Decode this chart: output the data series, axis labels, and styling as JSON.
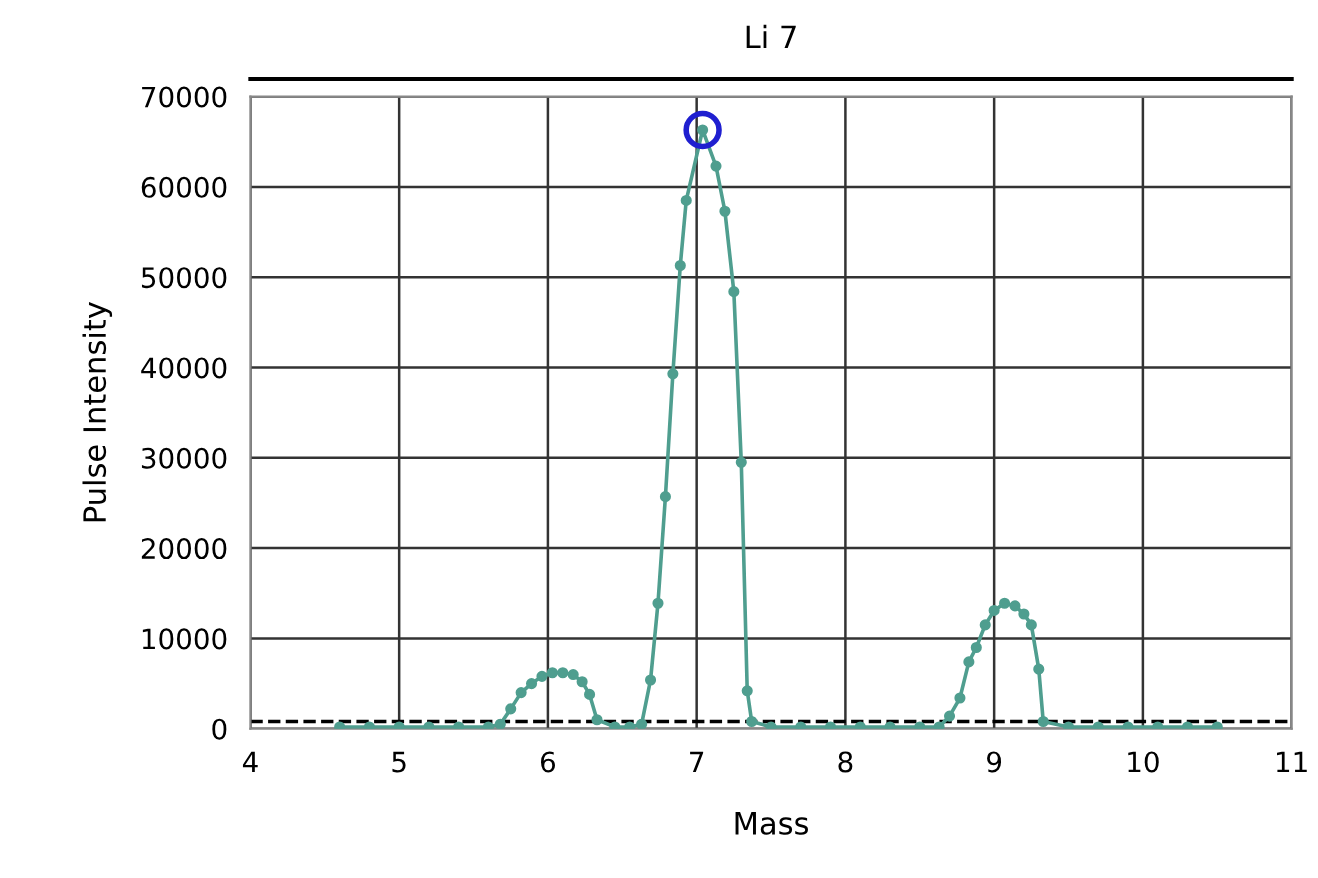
{
  "chart_data": {
    "type": "line",
    "title": "Li 7",
    "xlabel": "Mass",
    "ylabel": "Pulse Intensity",
    "xlim": [
      4,
      11
    ],
    "xticks": [
      4,
      5,
      6,
      7,
      8,
      9,
      10,
      11
    ],
    "ylim": [
      0,
      70000
    ],
    "yticks": [
      0,
      10000,
      20000,
      30000,
      40000,
      50000,
      60000,
      70000
    ],
    "grid": true,
    "marker": "circle",
    "line_style": "solid",
    "ref_lines": [
      {
        "axis": "y",
        "value": 800,
        "color": "#000000",
        "line_style": "dashed"
      }
    ],
    "series": [
      {
        "color": "#4f9e8f",
        "x": [
          4.6,
          4.8,
          5.0,
          5.2,
          5.4,
          5.6,
          5.68,
          5.75,
          5.82,
          5.89,
          5.96,
          6.03,
          6.1,
          6.17,
          6.23,
          6.28,
          6.33,
          6.45,
          6.55,
          6.63,
          6.69,
          6.74,
          6.79,
          6.84,
          6.89,
          6.93,
          7.04,
          7.13,
          7.19,
          7.25,
          7.3,
          7.34,
          7.37,
          7.5,
          7.7,
          7.9,
          8.1,
          8.3,
          8.5,
          8.63,
          8.7,
          8.77,
          8.83,
          8.88,
          8.94,
          9.0,
          9.07,
          9.14,
          9.2,
          9.25,
          9.3,
          9.33,
          9.5,
          9.7,
          9.9,
          10.1,
          10.3,
          10.5
        ],
        "values": [
          200,
          200,
          200,
          200,
          200,
          200,
          500,
          2200,
          4000,
          5000,
          5800,
          6200,
          6200,
          6000,
          5200,
          3800,
          1000,
          200,
          200,
          500,
          5400,
          13900,
          25700,
          39300,
          51300,
          58500,
          66300,
          62300,
          57300,
          48400,
          29500,
          4200,
          800,
          200,
          200,
          200,
          200,
          200,
          200,
          200,
          1400,
          3400,
          7400,
          9000,
          11500,
          13100,
          13900,
          13600,
          12700,
          11500,
          6600,
          800,
          200,
          200,
          200,
          200,
          200,
          200
        ]
      },
      {
        "type": "scatter",
        "color": "#1f1fd0",
        "marker": "circle",
        "x": [
          7.04
        ],
        "values": [
          66300
        ]
      }
    ]
  }
}
